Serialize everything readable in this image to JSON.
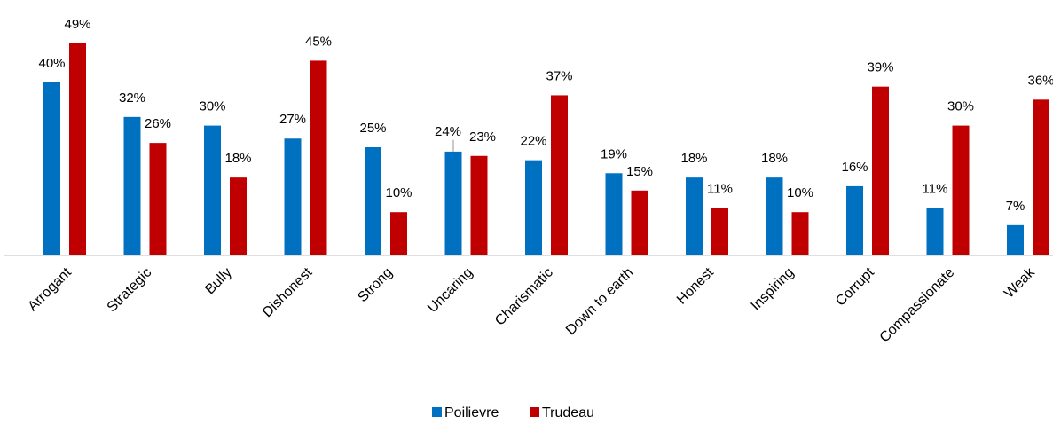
{
  "chart_data": {
    "type": "bar",
    "categories": [
      "Arrogant",
      "Strategic",
      "Bully",
      "Dishonest",
      "Strong",
      "Uncaring",
      "Charismatic",
      "Down to earth",
      "Honest",
      "Inspiring",
      "Corrupt",
      "Compassionate",
      "Weak"
    ],
    "series": [
      {
        "name": "Poilievre",
        "values": [
          40,
          32,
          30,
          27,
          25,
          24,
          22,
          19,
          18,
          18,
          16,
          11,
          7
        ],
        "color": "#0070c0"
      },
      {
        "name": "Trudeau",
        "values": [
          49,
          26,
          18,
          45,
          10,
          23,
          37,
          15,
          11,
          10,
          39,
          30,
          36
        ],
        "color": "#c00000"
      }
    ],
    "value_suffix": "%",
    "ylim": [
      0,
      50
    ],
    "grid": false,
    "legend_position": "bottom",
    "title": "",
    "xlabel": "",
    "ylabel": ""
  }
}
